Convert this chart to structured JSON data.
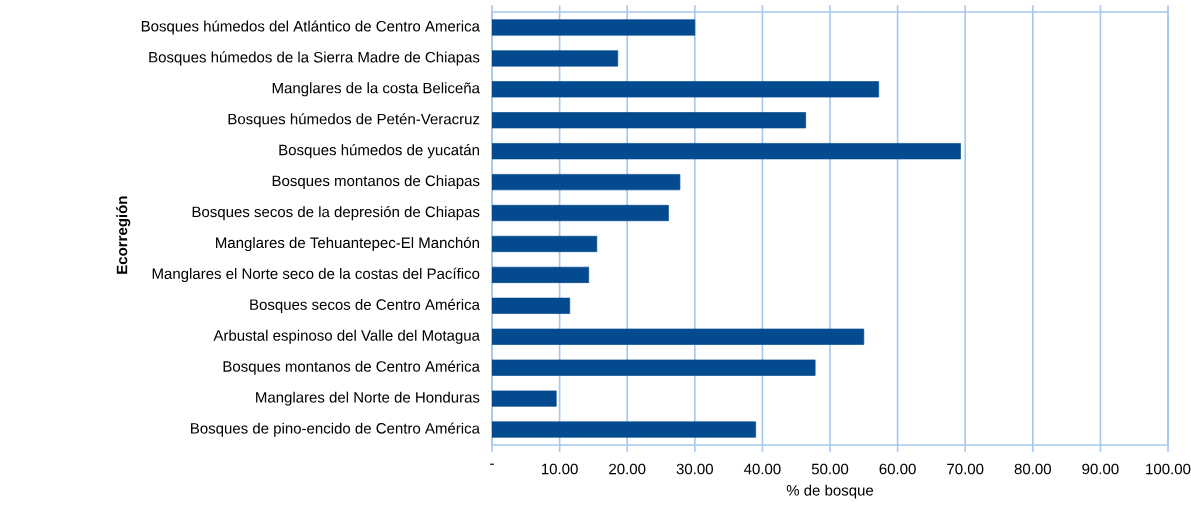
{
  "chart_data": {
    "type": "bar",
    "orientation": "horizontal",
    "xlabel": "% de bosque",
    "ylabel": "Ecorregión",
    "categories": [
      "Bosques  húmedos del Atlántico de Centro America",
      "Bosques húmedos de la Sierra Madre de Chiapas",
      "Manglares de la costa Beliceña",
      "Bosques húmedos de Petén-Veracruz",
      "Bosques húmedos de yucatán",
      "Bosques montanos de Chiapas",
      "Bosques secos de la depresión de Chiapas",
      "Manglares  de Tehuantepec-El Manchón",
      "Manglares el Norte seco de la costas del Pacífico",
      "Bosques secos de Centro América",
      "Arbustal espinoso del Valle del Motagua",
      "Bosques montanos de Centro América",
      "Manglares del Norte de Honduras",
      "Bosques de pino-encido de Centro América"
    ],
    "values": [
      30.0,
      18.6,
      57.2,
      46.4,
      69.3,
      27.8,
      26.1,
      15.5,
      14.3,
      11.5,
      55.0,
      47.8,
      9.5,
      39.0
    ],
    "color": "#034a8f",
    "xlim": [
      0,
      100
    ],
    "xticks": [
      {
        "value": 0,
        "label": "-"
      },
      {
        "value": 10,
        "label": "10.00"
      },
      {
        "value": 20,
        "label": "20.00"
      },
      {
        "value": 30,
        "label": "30.00"
      },
      {
        "value": 40,
        "label": "40.00"
      },
      {
        "value": 50,
        "label": "50.00"
      },
      {
        "value": 60,
        "label": "60.00"
      },
      {
        "value": 70,
        "label": "70.00"
      },
      {
        "value": 80,
        "label": "80.00"
      },
      {
        "value": 90,
        "label": "90.00"
      },
      {
        "value": 100,
        "label": "100.00"
      }
    ],
    "grid": "x"
  }
}
